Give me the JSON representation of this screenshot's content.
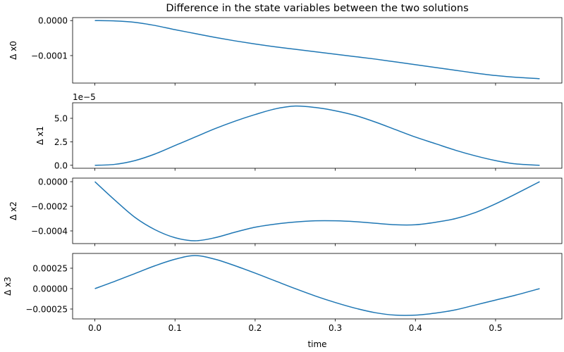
{
  "chart_data": {
    "type": "line",
    "title": "Difference in the state variables between the two solutions",
    "xlabel": "time",
    "xlim": [
      -0.02775,
      0.58275
    ],
    "xticks": [
      0.0,
      0.1,
      0.2,
      0.3,
      0.4,
      0.5
    ],
    "xtick_labels": [
      "0.0",
      "0.1",
      "0.2",
      "0.3",
      "0.4",
      "0.5"
    ],
    "line_color": "#1f77b4",
    "grid": false,
    "x": [
      0,
      0.025,
      0.05,
      0.075,
      0.1,
      0.125,
      0.15,
      0.175,
      0.2,
      0.225,
      0.25,
      0.275,
      0.3,
      0.325,
      0.35,
      0.375,
      0.4,
      0.425,
      0.45,
      0.475,
      0.5,
      0.525,
      0.555
    ],
    "subplots": [
      {
        "ylabel": "Δ x0",
        "offset_text": "",
        "ylim": [
          -0.0001785,
          8.5e-06
        ],
        "yticks": [
          0.0,
          -0.0001
        ],
        "ytick_labels": [
          "0.0000",
          "−0.0001"
        ],
        "values": [
          0,
          -1e-06,
          -5e-06,
          -1.4e-05,
          -2.6e-05,
          -3.7e-05,
          -4.8e-05,
          -5.8e-05,
          -6.7e-05,
          -7.5e-05,
          -8.2e-05,
          -8.9e-05,
          -9.6e-05,
          -0.000103,
          -0.00011,
          -0.000118,
          -0.000126,
          -0.000134,
          -0.000142,
          -0.00015,
          -0.000157,
          -0.000162,
          -0.000166
        ]
      },
      {
        "ylabel": "Δ x1",
        "offset_text": "1e−5",
        "ylim": [
          -3.17e-06,
          6.65e-05
        ],
        "yticks": [
          0.0,
          2.5e-05,
          5e-05
        ],
        "ytick_labels": [
          "0.0",
          "2.5",
          "5.0"
        ],
        "values": [
          0,
          1e-06,
          5e-06,
          1.2e-05,
          2.1e-05,
          3e-05,
          3.9e-05,
          4.7e-05,
          5.4e-05,
          6e-05,
          6.3e-05,
          6.15e-05,
          5.8e-05,
          5.3e-05,
          4.6e-05,
          3.8e-05,
          3e-05,
          2.3e-05,
          1.6e-05,
          1e-05,
          5e-06,
          1.5e-06,
          0
        ]
      },
      {
        "ylabel": "Δ x2",
        "offset_text": "",
        "ylim": [
          -0.000503,
          2.9e-05
        ],
        "yticks": [
          0.0,
          -0.0002,
          -0.0004
        ],
        "ytick_labels": [
          "0.0000",
          "−0.0002",
          "−0.0004"
        ],
        "values": [
          0,
          -0.00015,
          -0.00029,
          -0.00039,
          -0.000455,
          -0.00048,
          -0.000455,
          -0.00041,
          -0.00037,
          -0.000345,
          -0.000328,
          -0.000318,
          -0.000318,
          -0.000325,
          -0.000338,
          -0.00035,
          -0.00035,
          -0.00033,
          -0.0003,
          -0.00025,
          -0.00018,
          -0.0001,
          0
        ]
      },
      {
        "ylabel": "Δ x3",
        "offset_text": "",
        "ylim": [
          -0.000371,
          0.000431
        ],
        "yticks": [
          0.00025,
          0.0,
          -0.00025
        ],
        "ytick_labels": [
          "0.00025",
          "0.00000",
          "−0.00025"
        ],
        "values": [
          0,
          9e-05,
          0.000185,
          0.00028,
          0.00036,
          0.000405,
          0.00036,
          0.00028,
          0.00019,
          9.5e-05,
          0,
          -9e-05,
          -0.00017,
          -0.00024,
          -0.000295,
          -0.000325,
          -0.000325,
          -0.0003,
          -0.00026,
          -0.0002,
          -0.00014,
          -8e-05,
          0
        ]
      }
    ]
  }
}
